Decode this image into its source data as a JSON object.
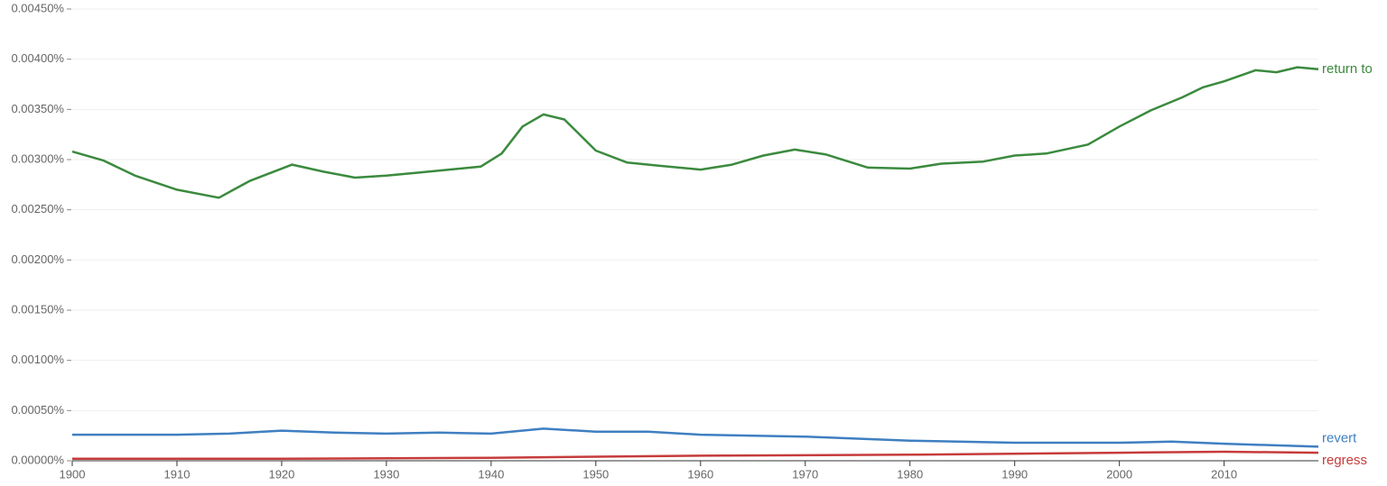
{
  "chart_data": {
    "type": "line",
    "xlim": [
      1900,
      2019
    ],
    "xticks": [
      1900,
      1910,
      1920,
      1930,
      1940,
      1950,
      1960,
      1970,
      1980,
      1990,
      2000,
      2010
    ],
    "ylim": [
      0,
      0.0045
    ],
    "yticks": [
      {
        "value": 0,
        "label": "0.00000%"
      },
      {
        "value": 0.0005,
        "label": "0.00050%"
      },
      {
        "value": 0.001,
        "label": "0.00100%"
      },
      {
        "value": 0.0015,
        "label": "0.00150%"
      },
      {
        "value": 0.002,
        "label": "0.00200%"
      },
      {
        "value": 0.0025,
        "label": "0.00250%"
      },
      {
        "value": 0.003,
        "label": "0.00300%"
      },
      {
        "value": 0.0035,
        "label": "0.00350%"
      },
      {
        "value": 0.004,
        "label": "0.00400%"
      },
      {
        "value": 0.0045,
        "label": "0.00450%"
      }
    ],
    "grid": true,
    "series": [
      {
        "name": "return to",
        "color": "#3b8a3e",
        "x": [
          1900,
          1903,
          1906,
          1910,
          1914,
          1917,
          1921,
          1924,
          1927,
          1930,
          1933,
          1936,
          1939,
          1941,
          1943,
          1945,
          1947,
          1950,
          1953,
          1956,
          1960,
          1963,
          1966,
          1969,
          1972,
          1976,
          1980,
          1983,
          1987,
          1990,
          1993,
          1997,
          2000,
          2003,
          2006,
          2008,
          2010,
          2013,
          2015,
          2017,
          2019
        ],
        "values": [
          0.00308,
          0.00299,
          0.00284,
          0.0027,
          0.00262,
          0.00279,
          0.00295,
          0.00288,
          0.00282,
          0.00284,
          0.00287,
          0.0029,
          0.00293,
          0.00306,
          0.00333,
          0.00345,
          0.0034,
          0.00309,
          0.00297,
          0.00294,
          0.0029,
          0.00295,
          0.00304,
          0.0031,
          0.00305,
          0.00292,
          0.00291,
          0.00296,
          0.00298,
          0.00304,
          0.00306,
          0.00315,
          0.00333,
          0.00349,
          0.00362,
          0.00372,
          0.00378,
          0.00389,
          0.00387,
          0.00392,
          0.0039
        ]
      },
      {
        "name": "revert",
        "color": "#3f7fc1",
        "x": [
          1900,
          1910,
          1915,
          1920,
          1925,
          1930,
          1935,
          1940,
          1945,
          1950,
          1955,
          1960,
          1970,
          1980,
          1990,
          2000,
          2005,
          2010,
          2019
        ],
        "values": [
          0.00026,
          0.00026,
          0.00027,
          0.0003,
          0.00028,
          0.00027,
          0.00028,
          0.00027,
          0.00032,
          0.00029,
          0.00029,
          0.00026,
          0.00024,
          0.0002,
          0.00018,
          0.00018,
          0.00019,
          0.00017,
          0.00014
        ]
      },
      {
        "name": "regress",
        "color": "#c63b3b",
        "x": [
          1900,
          1920,
          1940,
          1960,
          1980,
          2000,
          2010,
          2019
        ],
        "values": [
          2e-05,
          2e-05,
          3e-05,
          5e-05,
          6e-05,
          8e-05,
          9e-05,
          8e-05
        ]
      }
    ]
  }
}
